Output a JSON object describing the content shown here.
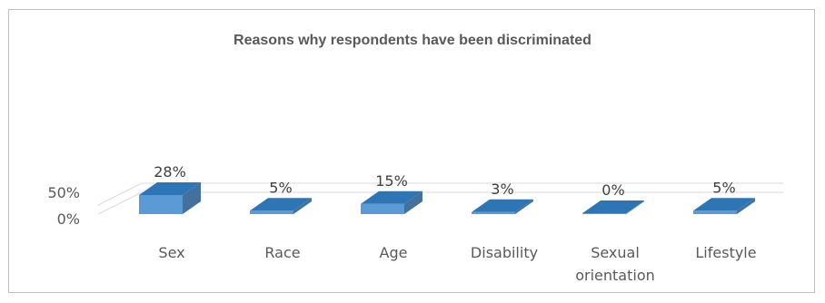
{
  "chart_data": {
    "type": "bar",
    "title": "Reasons why respondents have been discriminated",
    "categories": [
      "Sex",
      "Race",
      "Age",
      "Disability",
      "Sexual orientation",
      "Lifestyle"
    ],
    "category_lines": [
      [
        "Sex"
      ],
      [
        "Race"
      ],
      [
        "Age"
      ],
      [
        "Disability"
      ],
      [
        "Sexual",
        "orientation"
      ],
      [
        "Lifestyle"
      ]
    ],
    "values": [
      28,
      5,
      15,
      3,
      0,
      5
    ],
    "data_labels": [
      "28%",
      "5%",
      "15%",
      "3%",
      "0%",
      "5%"
    ],
    "y_ticks": [
      0,
      50
    ],
    "y_tick_labels": [
      "0%",
      "50%"
    ],
    "ylim": [
      0,
      50
    ],
    "grid": true,
    "legend": "none",
    "three_d": true,
    "colors": {
      "front": "#5b9bd5",
      "top": "#2e75b6",
      "side": "#41719c",
      "grid": "#d9d9d9"
    }
  }
}
